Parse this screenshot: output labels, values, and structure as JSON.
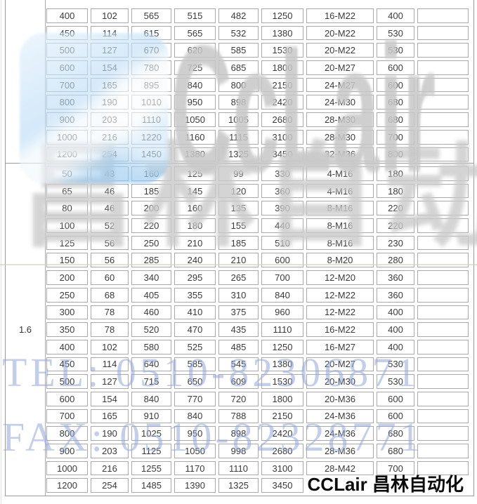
{
  "table": {
    "sections": [
      {
        "label": "",
        "rows": [
          [
            "400",
            "102",
            "565",
            "515",
            "482",
            "1250",
            "16-M22",
            "400",
            ""
          ],
          [
            "450",
            "114",
            "615",
            "565",
            "532",
            "1380",
            "20-M22",
            "530",
            ""
          ],
          [
            "500",
            "127",
            "670",
            "620",
            "585",
            "1530",
            "20-M22",
            "530",
            ""
          ],
          [
            "600",
            "154",
            "780",
            "725",
            "685",
            "1800",
            "20-M27",
            "600",
            ""
          ],
          [
            "700",
            "165",
            "895",
            "840",
            "800",
            "2150",
            "24-M27",
            "600",
            ""
          ],
          [
            "800",
            "190",
            "1010",
            "950",
            "898",
            "2420",
            "24-M30",
            "680",
            ""
          ],
          [
            "900",
            "203",
            "1110",
            "1050",
            "1005",
            "2680",
            "28-M30",
            "680",
            ""
          ],
          [
            "1000",
            "216",
            "1220",
            "1160",
            "1115",
            "3100",
            "28-M30",
            "700",
            ""
          ],
          [
            "1200",
            "254",
            "1450",
            "1380",
            "1325",
            "3450",
            "32-M36",
            "800",
            ""
          ]
        ]
      },
      {
        "label": "1.6",
        "rows": [
          [
            "50",
            "43",
            "160",
            "125",
            "99",
            "330",
            "4-M16",
            "180",
            ""
          ],
          [
            "65",
            "46",
            "185",
            "145",
            "120",
            "360",
            "4-M16",
            "180",
            ""
          ],
          [
            "80",
            "46",
            "200",
            "160",
            "135",
            "390",
            "8-M16",
            "220",
            ""
          ],
          [
            "100",
            "52",
            "220",
            "180",
            "155",
            "440",
            "8-M16",
            "220",
            ""
          ],
          [
            "125",
            "56",
            "250",
            "210",
            "185",
            "510",
            "8-M16",
            "230",
            ""
          ],
          [
            "150",
            "56",
            "285",
            "240",
            "210",
            "600",
            "8-M20",
            "280",
            ""
          ],
          [
            "200",
            "60",
            "340",
            "295",
            "265",
            "700",
            "12-M20",
            "360",
            ""
          ],
          [
            "250",
            "68",
            "405",
            "355",
            "310",
            "840",
            "12-M22",
            "360",
            ""
          ],
          [
            "300",
            "78",
            "460",
            "410",
            "375",
            "960",
            "12-M22",
            "400",
            ""
          ],
          [
            "350",
            "78",
            "520",
            "470",
            "435",
            "1110",
            "16-M22",
            "400",
            ""
          ],
          [
            "400",
            "102",
            "580",
            "525",
            "485",
            "1250",
            "16-M27",
            "400",
            ""
          ],
          [
            "450",
            "114",
            "640",
            "585",
            "545",
            "1380",
            "20-M27",
            "530",
            ""
          ],
          [
            "500",
            "127",
            "715",
            "650",
            "609",
            "1530",
            "20-M30",
            "530",
            ""
          ],
          [
            "600",
            "154",
            "840",
            "770",
            "720",
            "1800",
            "20-M36",
            "600",
            ""
          ],
          [
            "700",
            "165",
            "910",
            "840",
            "788",
            "2150",
            "24-M36",
            "600",
            ""
          ],
          [
            "800",
            "190",
            "1025",
            "950",
            "898",
            "2420",
            "24-M36",
            "680",
            ""
          ],
          [
            "900",
            "203",
            "1125",
            "1050",
            "998",
            "2680",
            "28-M36",
            "680",
            ""
          ],
          [
            "1000",
            "216",
            "1255",
            "1170",
            "1110",
            "3100",
            "28-M42",
            "700",
            ""
          ],
          [
            "1200",
            "254",
            "1485",
            "1390",
            "1325",
            "3450",
            null,
            null,
            null
          ]
        ]
      }
    ]
  },
  "watermarks": {
    "logo_text": "CcLair",
    "cn_text": "昌林自动化",
    "tel": "TEL: 0510-82306871",
    "fax": "FAX: 0510-82328771"
  },
  "footer": {
    "brand": "CCLair 昌林自动化"
  },
  "colors": {
    "cell_border": "#a9a9a9",
    "cell_text": "#3a3a3a",
    "watermark_blue_logo": "#a6d0f0",
    "watermark_gray": "#c9c9c9",
    "watermark_phone_blue": "#93a7dc",
    "brand_text": "#0c0c0c"
  }
}
